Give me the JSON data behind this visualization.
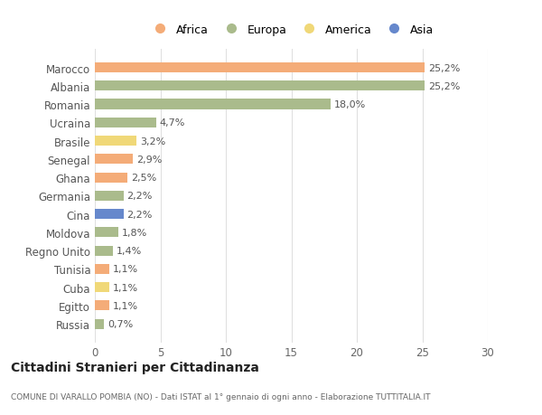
{
  "countries": [
    "Marocco",
    "Albania",
    "Romania",
    "Ucraina",
    "Brasile",
    "Senegal",
    "Ghana",
    "Germania",
    "Cina",
    "Moldova",
    "Regno Unito",
    "Tunisia",
    "Cuba",
    "Egitto",
    "Russia"
  ],
  "values": [
    25.2,
    25.2,
    18.0,
    4.7,
    3.2,
    2.9,
    2.5,
    2.2,
    2.2,
    1.8,
    1.4,
    1.1,
    1.1,
    1.1,
    0.7
  ],
  "labels": [
    "25,2%",
    "25,2%",
    "18,0%",
    "4,7%",
    "3,2%",
    "2,9%",
    "2,5%",
    "2,2%",
    "2,2%",
    "1,8%",
    "1,4%",
    "1,1%",
    "1,1%",
    "1,1%",
    "0,7%"
  ],
  "continents": [
    "Africa",
    "Europa",
    "Europa",
    "Europa",
    "America",
    "Africa",
    "Africa",
    "Europa",
    "Asia",
    "Europa",
    "Europa",
    "Africa",
    "America",
    "Africa",
    "Europa"
  ],
  "colors": {
    "Africa": "#F4AC78",
    "Europa": "#AABB8C",
    "America": "#F0D878",
    "Asia": "#6688CC"
  },
  "xlim": [
    0,
    30
  ],
  "xticks": [
    0,
    5,
    10,
    15,
    20,
    25,
    30
  ],
  "title": "Cittadini Stranieri per Cittadinanza",
  "subtitle": "COMUNE DI VARALLO POMBIA (NO) - Dati ISTAT al 1° gennaio di ogni anno - Elaborazione TUTTITALIA.IT",
  "bg_color": "#ffffff",
  "grid_color": "#e0e0e0",
  "bar_height": 0.55,
  "label_fontsize": 8,
  "tick_fontsize": 8.5,
  "legend_order": [
    "Africa",
    "Europa",
    "America",
    "Asia"
  ]
}
